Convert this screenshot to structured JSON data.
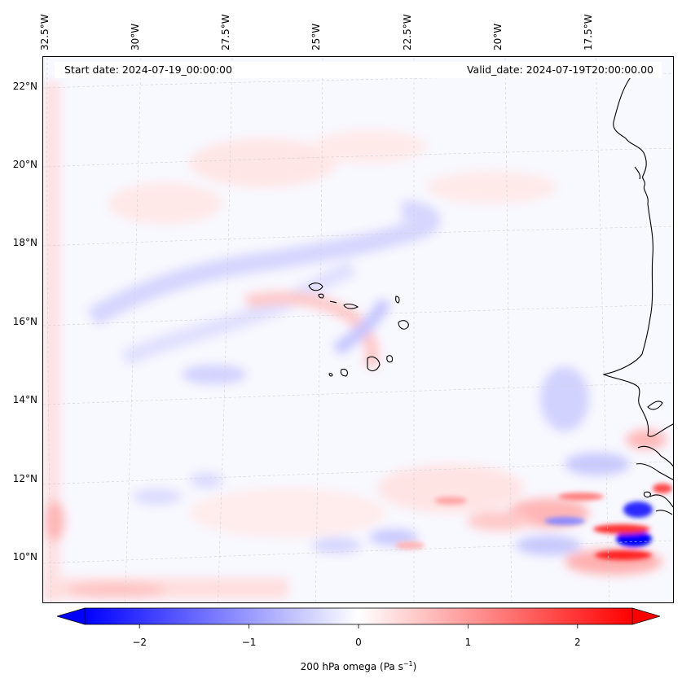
{
  "map": {
    "start_date_text": "Start date: 2024-07-19_00:00:00",
    "valid_date_text": "Valid_date: 2024-07-19T20:00:00.00",
    "longitude_labels": [
      "32.5°W",
      "30°W",
      "27.5°W",
      "25°W",
      "22.5°W",
      "20°W",
      "17.5°W"
    ],
    "latitude_labels": [
      "22°N",
      "20°N",
      "18°N",
      "16°N",
      "14°N",
      "12°N",
      "10°N"
    ],
    "field": "200 hPa omega",
    "coastline_color": "#000000",
    "gridline_color": "#c8c8c8"
  },
  "colorbar": {
    "label_prefix": "200 hPa omega (Pa s",
    "label_exponent": "−1",
    "label_suffix": ")",
    "ticks": [
      "−2",
      "−1",
      "0",
      "1",
      "2"
    ],
    "tick_values": [
      -2,
      -1,
      0,
      1,
      2
    ],
    "range": [
      -2.5,
      2.5
    ],
    "extend": "both",
    "colormap": "bwr",
    "low_color": "#0000ff",
    "mid_color": "#ffffff",
    "high_color": "#ff0000"
  }
}
